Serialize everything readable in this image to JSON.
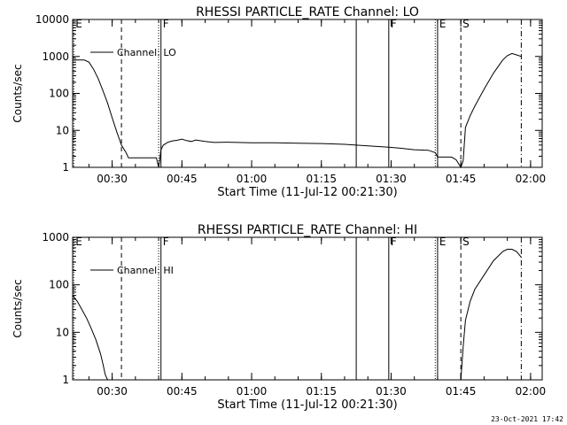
{
  "timestamp": "23-Oct-2021 17:42",
  "chart_data": [
    {
      "type": "line",
      "title": "RHESSI PARTICLE_RATE Channel: LO",
      "xlabel": "Start Time (11-Jul-12 00:21:30)",
      "ylabel": "Counts/sec",
      "yscale": "log",
      "ylim": [
        1,
        10000
      ],
      "xlim": [
        "00:21:30",
        "02:02:30"
      ],
      "x_ticks": [
        "00:30",
        "00:45",
        "01:00",
        "01:15",
        "01:30",
        "01:45",
        "02:00"
      ],
      "y_ticks": [
        "1",
        "10",
        "100",
        "1000",
        "10000"
      ],
      "legend": "Channel: LO",
      "legend_position": "top-left",
      "markers": [
        {
          "time": "00:21:45",
          "label": "E",
          "style": "dotted"
        },
        {
          "time": "00:32:00",
          "label": "",
          "style": "dashed"
        },
        {
          "time": "00:40:00",
          "label": "",
          "style": "dotted"
        },
        {
          "time": "00:40:30",
          "label": "F",
          "style": "solid"
        },
        {
          "time": "01:22:30",
          "label": "",
          "style": "solid"
        },
        {
          "time": "01:29:30",
          "label": "F",
          "style": "solid"
        },
        {
          "time": "01:39:30",
          "label": "",
          "style": "dotted"
        },
        {
          "time": "01:40:00",
          "label": "E",
          "style": "solid"
        },
        {
          "time": "01:45:00",
          "label": "S",
          "style": "dashed"
        },
        {
          "time": "01:58:00",
          "label": "",
          "style": "dashdot"
        }
      ],
      "series": [
        {
          "values": [
            [
              "00:21:30",
              800
            ],
            [
              "00:24:00",
              800
            ],
            [
              "00:25:00",
              700
            ],
            [
              "00:26:00",
              450
            ],
            [
              "00:27:00",
              250
            ],
            [
              "00:28:00",
              120
            ],
            [
              "00:29:00",
              55
            ],
            [
              "00:30:00",
              22
            ],
            [
              "00:31:00",
              9
            ],
            [
              "00:32:00",
              4
            ],
            [
              "00:33:00",
              2.5
            ],
            [
              "00:33:30",
              1.8
            ],
            [
              "00:36:00",
              1.8
            ],
            [
              "00:37:30",
              1.8
            ],
            [
              "00:39:30",
              1.8
            ],
            [
              "00:40:00",
              1.0
            ],
            [
              "00:40:30",
              3
            ],
            [
              "00:41:00",
              4
            ],
            [
              "00:42:00",
              4.8
            ],
            [
              "00:43:00",
              5.2
            ],
            [
              "00:44:00",
              5.4
            ],
            [
              "00:45:00",
              5.8
            ],
            [
              "00:46:00",
              5.3
            ],
            [
              "00:47:00",
              5.0
            ],
            [
              "00:48:00",
              5.5
            ],
            [
              "00:50:00",
              5.0
            ],
            [
              "00:52:00",
              4.7
            ],
            [
              "00:55:00",
              4.8
            ],
            [
              "01:00:00",
              4.6
            ],
            [
              "01:05:00",
              4.6
            ],
            [
              "01:10:00",
              4.5
            ],
            [
              "01:15:00",
              4.4
            ],
            [
              "01:20:00",
              4.2
            ],
            [
              "01:22:30",
              4.0
            ],
            [
              "01:25:00",
              3.8
            ],
            [
              "01:29:30",
              3.5
            ],
            [
              "01:32:00",
              3.3
            ],
            [
              "01:35:00",
              3.0
            ],
            [
              "01:38:00",
              2.9
            ],
            [
              "01:39:30",
              2.5
            ],
            [
              "01:40:00",
              1.9
            ],
            [
              "01:42:00",
              1.9
            ],
            [
              "01:43:00",
              1.9
            ],
            [
              "01:44:00",
              1.6
            ],
            [
              "01:45:00",
              1.0
            ],
            [
              "01:45:30",
              1.5
            ],
            [
              "01:46:00",
              12
            ],
            [
              "01:47:00",
              25
            ],
            [
              "01:48:00",
              45
            ],
            [
              "01:50:00",
              130
            ],
            [
              "01:52:00",
              350
            ],
            [
              "01:54:00",
              800
            ],
            [
              "01:55:00",
              1050
            ],
            [
              "01:56:00",
              1200
            ],
            [
              "01:57:00",
              1100
            ],
            [
              "01:58:00",
              1000
            ]
          ]
        }
      ]
    },
    {
      "type": "line",
      "title": "RHESSI PARTICLE_RATE Channel: HI",
      "xlabel": "Start Time (11-Jul-12 00:21:30)",
      "ylabel": "Counts/sec",
      "yscale": "log",
      "ylim": [
        1,
        1000
      ],
      "xlim": [
        "00:21:30",
        "02:02:30"
      ],
      "x_ticks": [
        "00:30",
        "00:45",
        "01:00",
        "01:15",
        "01:30",
        "01:45",
        "02:00"
      ],
      "y_ticks": [
        "1",
        "10",
        "100",
        "1000"
      ],
      "legend": "Channel: HI",
      "legend_position": "top-left",
      "markers": [
        {
          "time": "00:21:45",
          "label": "E",
          "style": "dotted"
        },
        {
          "time": "00:32:00",
          "label": "",
          "style": "dashed"
        },
        {
          "time": "00:40:00",
          "label": "",
          "style": "dotted"
        },
        {
          "time": "00:40:30",
          "label": "F",
          "style": "solid"
        },
        {
          "time": "01:22:30",
          "label": "",
          "style": "solid"
        },
        {
          "time": "01:29:30",
          "label": "F",
          "style": "solid"
        },
        {
          "time": "01:39:30",
          "label": "",
          "style": "dotted"
        },
        {
          "time": "01:40:00",
          "label": "E",
          "style": "solid"
        },
        {
          "time": "01:45:00",
          "label": "S",
          "style": "dashed"
        },
        {
          "time": "01:58:00",
          "label": "",
          "style": "dashdot"
        }
      ],
      "series": [
        {
          "values": [
            [
              "00:21:30",
              60
            ],
            [
              "00:22:30",
              45
            ],
            [
              "00:23:30",
              30
            ],
            [
              "00:24:30",
              20
            ],
            [
              "00:25:30",
              12
            ],
            [
              "00:26:30",
              7
            ],
            [
              "00:27:30",
              3.5
            ],
            [
              "00:28:00",
              2.2
            ],
            [
              "00:28:30",
              1.3
            ],
            [
              "00:29:00",
              1.0
            ]
          ]
        },
        {
          "values": [
            [
              "01:45:00",
              1.0
            ],
            [
              "01:45:30",
              5
            ],
            [
              "01:46:00",
              18
            ],
            [
              "01:47:00",
              45
            ],
            [
              "01:48:00",
              80
            ],
            [
              "01:50:00",
              160
            ],
            [
              "01:52:00",
              320
            ],
            [
              "01:54:00",
              500
            ],
            [
              "01:55:00",
              560
            ],
            [
              "01:56:00",
              560
            ],
            [
              "01:57:00",
              500
            ],
            [
              "01:58:00",
              380
            ]
          ]
        }
      ]
    }
  ]
}
